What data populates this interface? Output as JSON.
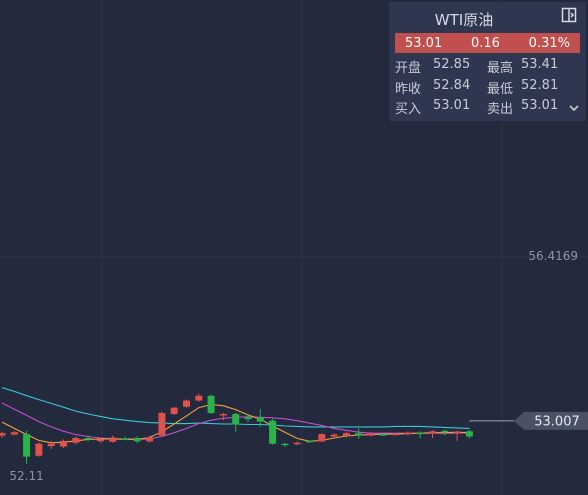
{
  "panel": {
    "title": "WTI原油",
    "price": "53.01",
    "change": "0.16",
    "change_pct": "0.31%",
    "rows": [
      {
        "l1": "开盘",
        "v1": "52.85",
        "l2": "最高",
        "v2": "53.41"
      },
      {
        "l1": "昨收",
        "v1": "52.84",
        "l2": "最低",
        "v2": "52.81"
      },
      {
        "l1": "买入",
        "v1": "53.01",
        "l2": "卖出",
        "v2": "53.01"
      }
    ],
    "collapse_icon": "panel-collapse-icon",
    "expand_icon": "chevron-down-icon"
  },
  "colors": {
    "up": "#e0514b",
    "down": "#2ab34a",
    "ma_fast": "#f0a23c",
    "ma_mid": "#c04fd0",
    "ma_slow": "#3cc6d8",
    "quote_bg": "#c0504d"
  },
  "chart_data": {
    "type": "candlestick",
    "price_range": [
      52.0,
      56.42
    ],
    "axis_labels": {
      "high_marker": "56.4169",
      "low_marker": "52.11",
      "last_price": "53.007"
    },
    "candles": [
      {
        "o": 52.7,
        "c": 52.75,
        "h": 52.78,
        "l": 52.65
      },
      {
        "o": 52.72,
        "c": 52.77,
        "h": 52.8,
        "l": 52.7
      },
      {
        "o": 52.73,
        "c": 52.26,
        "h": 52.8,
        "l": 52.11
      },
      {
        "o": 52.28,
        "c": 52.53,
        "h": 52.56,
        "l": 52.26
      },
      {
        "o": 52.48,
        "c": 52.53,
        "h": 52.58,
        "l": 52.42
      },
      {
        "o": 52.47,
        "c": 52.59,
        "h": 52.62,
        "l": 52.44
      },
      {
        "o": 52.55,
        "c": 52.65,
        "h": 52.68,
        "l": 52.52
      },
      {
        "o": 52.65,
        "c": 52.62,
        "h": 52.7,
        "l": 52.58
      },
      {
        "o": 52.58,
        "c": 52.62,
        "h": 52.66,
        "l": 52.55
      },
      {
        "o": 52.57,
        "c": 52.66,
        "h": 52.7,
        "l": 52.55
      },
      {
        "o": 52.64,
        "c": 52.63,
        "h": 52.68,
        "l": 52.6
      },
      {
        "o": 52.65,
        "c": 52.58,
        "h": 52.68,
        "l": 52.54
      },
      {
        "o": 52.58,
        "c": 52.66,
        "h": 52.7,
        "l": 52.55
      },
      {
        "o": 52.7,
        "c": 53.17,
        "h": 53.2,
        "l": 52.68
      },
      {
        "o": 53.15,
        "c": 53.28,
        "h": 53.3,
        "l": 53.13
      },
      {
        "o": 53.3,
        "c": 53.43,
        "h": 53.45,
        "l": 53.28
      },
      {
        "o": 53.43,
        "c": 53.53,
        "h": 53.57,
        "l": 53.4
      },
      {
        "o": 53.53,
        "c": 53.17,
        "h": 53.55,
        "l": 53.15
      },
      {
        "o": 53.13,
        "c": 53.15,
        "h": 53.18,
        "l": 53.02
      },
      {
        "o": 53.15,
        "c": 52.93,
        "h": 53.18,
        "l": 52.78
      },
      {
        "o": 53.09,
        "c": 53.04,
        "h": 53.13,
        "l": 52.98
      },
      {
        "o": 53.08,
        "c": 52.99,
        "h": 53.25,
        "l": 52.88
      },
      {
        "o": 53.01,
        "c": 52.53,
        "h": 53.05,
        "l": 52.51
      },
      {
        "o": 52.53,
        "c": 52.5,
        "h": 52.55,
        "l": 52.46
      },
      {
        "o": 52.53,
        "c": 52.55,
        "h": 52.58,
        "l": 52.5
      },
      {
        "o": 52.59,
        "c": 52.57,
        "h": 52.6,
        "l": 52.55
      },
      {
        "o": 52.58,
        "c": 52.73,
        "h": 52.75,
        "l": 52.56
      },
      {
        "o": 52.68,
        "c": 52.72,
        "h": 52.75,
        "l": 52.65
      },
      {
        "o": 52.69,
        "c": 52.75,
        "h": 52.78,
        "l": 52.66
      },
      {
        "o": 52.75,
        "c": 52.7,
        "h": 52.85,
        "l": 52.63
      },
      {
        "o": 52.7,
        "c": 52.74,
        "h": 52.77,
        "l": 52.68
      },
      {
        "o": 52.73,
        "c": 52.72,
        "h": 52.76,
        "l": 52.69
      },
      {
        "o": 52.73,
        "c": 52.74,
        "h": 52.76,
        "l": 52.7
      },
      {
        "o": 52.73,
        "c": 52.76,
        "h": 52.79,
        "l": 52.7
      },
      {
        "o": 52.76,
        "c": 52.75,
        "h": 52.79,
        "l": 52.64
      },
      {
        "o": 52.74,
        "c": 52.79,
        "h": 52.81,
        "l": 52.65
      },
      {
        "o": 52.8,
        "c": 52.77,
        "h": 52.82,
        "l": 52.7
      },
      {
        "o": 52.77,
        "c": 52.78,
        "h": 52.8,
        "l": 52.59
      },
      {
        "o": 52.79,
        "c": 52.68,
        "h": 52.82,
        "l": 52.64
      }
    ],
    "ma_fast": [
      52.98,
      52.85,
      52.72,
      52.6,
      52.55,
      52.56,
      52.59,
      52.62,
      52.63,
      52.63,
      52.63,
      52.62,
      52.66,
      52.78,
      52.94,
      53.11,
      53.28,
      53.35,
      53.32,
      53.24,
      53.13,
      53.04,
      52.9,
      52.77,
      52.64,
      52.58,
      52.6,
      52.65,
      52.69,
      52.71,
      52.72,
      52.73,
      52.73,
      52.74,
      52.75,
      52.76,
      52.76,
      52.77,
      52.76
    ],
    "ma_mid": [
      53.38,
      53.25,
      53.12,
      52.99,
      52.88,
      52.79,
      52.72,
      52.68,
      52.65,
      52.63,
      52.62,
      52.62,
      52.63,
      52.68,
      52.76,
      52.85,
      52.95,
      53.02,
      53.06,
      53.08,
      53.09,
      53.08,
      53.07,
      53.05,
      53.01,
      52.96,
      52.91,
      52.85,
      52.81,
      52.77,
      52.75,
      52.75,
      52.75,
      52.75,
      52.75,
      52.75,
      52.75,
      52.75,
      52.76
    ],
    "ma_slow": [
      53.7,
      53.62,
      53.53,
      53.45,
      53.37,
      53.29,
      53.21,
      53.15,
      53.1,
      53.05,
      53.02,
      52.99,
      52.97,
      52.96,
      52.95,
      52.95,
      52.96,
      52.95,
      52.94,
      52.94,
      52.93,
      52.93,
      52.92,
      52.9,
      52.89,
      52.88,
      52.88,
      52.88,
      52.88,
      52.88,
      52.88,
      52.88,
      52.89,
      52.89,
      52.89,
      52.88,
      52.87,
      52.86,
      52.85
    ]
  }
}
